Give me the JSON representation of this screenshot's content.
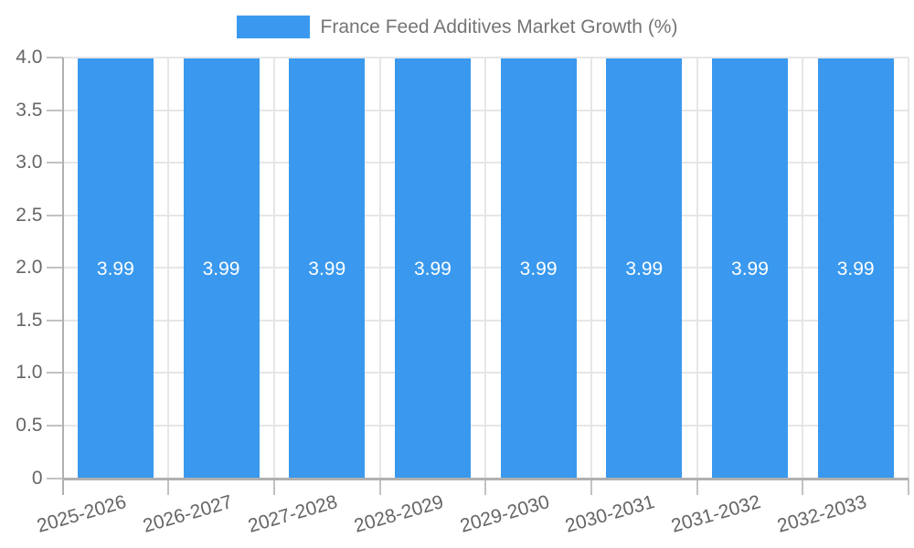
{
  "chart_data": {
    "type": "bar",
    "title": "France Feed Additives Market Growth (%)",
    "legend": {
      "position": "top",
      "label": "France Feed Additives Market Growth (%)",
      "swatch_color": "#3a99ee"
    },
    "categories": [
      "2025-2026",
      "2026-2027",
      "2027-2028",
      "2028-2029",
      "2029-2030",
      "2030-2031",
      "2031-2032",
      "2032-2033"
    ],
    "values": [
      3.99,
      3.99,
      3.99,
      3.99,
      3.99,
      3.99,
      3.99,
      3.99
    ],
    "bar_labels": [
      "3.99",
      "3.99",
      "3.99",
      "3.99",
      "3.99",
      "3.99",
      "3.99",
      "3.99"
    ],
    "xlabel": "",
    "ylabel": "",
    "ylim": [
      0,
      4
    ],
    "ytick_labels": [
      "4.0",
      "3.5",
      "3.0",
      "2.5",
      "2.0",
      "1.5",
      "1.0",
      "0.5",
      "0"
    ],
    "grid": {
      "horizontal": true,
      "vertical_category_boundaries": true
    },
    "colors": {
      "bar": "#3a99ee",
      "gridline": "#e6e6e6",
      "axis_line": "#b0b0b0",
      "tick": "#c2c2c2",
      "axis_label": "#666666",
      "legend_text": "#757575",
      "bar_label": "#ffffff",
      "background": "#ffffff"
    }
  }
}
